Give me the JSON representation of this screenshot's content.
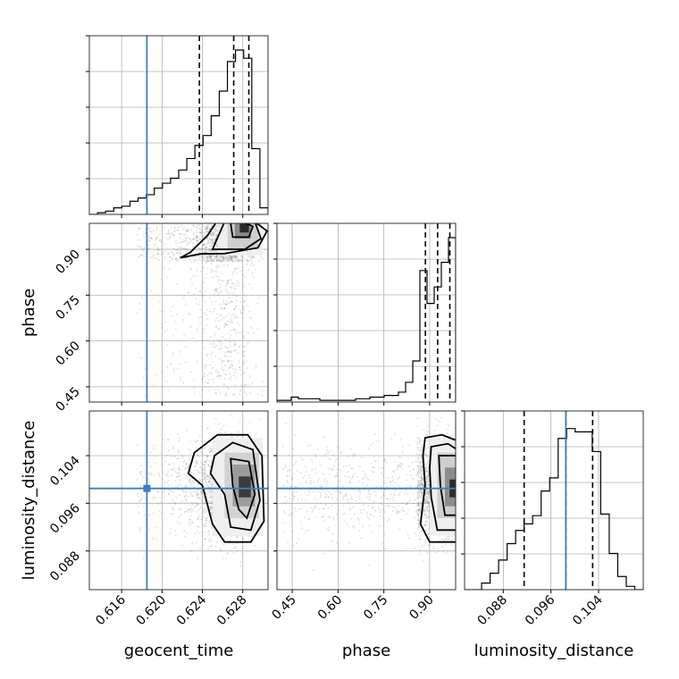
{
  "chart_data": {
    "type": "corner",
    "colors": {
      "truth": "#3b7fc0",
      "hist": "#000000",
      "scatter": "#7f7f7f",
      "grid": "#b0b0b0"
    },
    "parameters": [
      {
        "name": "geocent_time",
        "range": [
          0.6128,
          0.6305
        ],
        "truth": 0.6185,
        "ticks": [
          0.616,
          0.62,
          0.624,
          0.628
        ],
        "tick_labels": [
          "0.616",
          "0.620",
          "0.624",
          "0.628"
        ],
        "quantiles": [
          0.6237,
          0.6271,
          0.6286
        ]
      },
      {
        "name": "phase",
        "range": [
          0.4,
          0.985
        ],
        "truth": null,
        "ticks": [
          0.45,
          0.6,
          0.75,
          0.9
        ],
        "tick_labels": [
          "0.45",
          "0.60",
          "0.75",
          "0.90"
        ],
        "quantiles": [
          0.886,
          0.926,
          0.966
        ]
      },
      {
        "name": "luminosity_distance",
        "range": [
          0.0815,
          0.1115
        ],
        "truth": 0.0985,
        "ticks": [
          0.088,
          0.096,
          0.104
        ],
        "tick_labels": [
          "0.088",
          "0.096",
          "0.104"
        ],
        "quantiles": [
          0.0915,
          0.0985,
          0.103
        ]
      }
    ],
    "histograms": [
      {
        "param": "geocent_time",
        "values": [
          0,
          1,
          2,
          4,
          5,
          8,
          10,
          12,
          16,
          19,
          22,
          27,
          34,
          42,
          48,
          60,
          75,
          93,
          100,
          95,
          40,
          4
        ]
      },
      {
        "param": "phase",
        "values": [
          1,
          1,
          3,
          2,
          2,
          2,
          1,
          1,
          1,
          1,
          1,
          2,
          2,
          3,
          3,
          4,
          4,
          6,
          12,
          25,
          80,
          60,
          70,
          85,
          100
        ]
      },
      {
        "param": "luminosity_distance",
        "values": [
          0,
          0,
          4,
          10,
          18,
          28,
          36,
          40,
          45,
          60,
          68,
          92,
          98,
          96,
          96,
          84,
          46,
          22,
          8,
          2,
          0
        ]
      }
    ],
    "truth_point": {
      "geocent_time": 0.6185,
      "luminosity_distance": 0.0985
    },
    "axis_labels": {
      "x": [
        "geocent_time",
        "phase",
        "luminosity_distance"
      ],
      "y": [
        "phase",
        "luminosity_distance"
      ]
    }
  }
}
